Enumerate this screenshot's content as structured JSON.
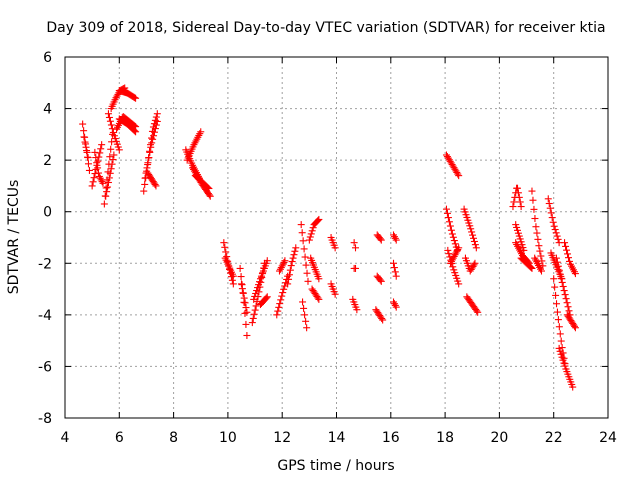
{
  "chart_data": {
    "type": "scatter",
    "title": "Day 309 of 2018, Sidereal Day-to-day VTEC variation (SDTVAR) for receiver ktia",
    "xlabel": "GPS time / hours",
    "ylabel": "SDTVAR / TECUs",
    "xlim": [
      4,
      24
    ],
    "ylim": [
      -8,
      6
    ],
    "xticks": [
      4,
      6,
      8,
      10,
      12,
      14,
      16,
      18,
      20,
      22,
      24
    ],
    "yticks": [
      -8,
      -6,
      -4,
      -2,
      0,
      2,
      4,
      6
    ],
    "xtick_labels": [
      "4",
      "6",
      "8",
      "10",
      "12",
      "14",
      "16",
      "18",
      "20",
      "22",
      "24"
    ],
    "ytick_labels": [
      "-8",
      "-6",
      "-4",
      "-2",
      "0",
      "2",
      "4",
      "6"
    ],
    "grid": true,
    "marker": "+",
    "marker_color": "#ff0000",
    "series": [
      {
        "name": "SDTVAR",
        "tracks": [
          {
            "x0": 4.65,
            "x1": 4.9,
            "y": [
              3.4,
              2.5,
              1.6
            ]
          },
          {
            "x0": 4.7,
            "x1": 4.85,
            "y": [
              2.9,
              2.1
            ]
          },
          {
            "x0": 5.0,
            "x1": 5.35,
            "y": [
              1.0,
              1.8,
              2.6
            ]
          },
          {
            "x0": 5.1,
            "x1": 5.4,
            "y": [
              2.3,
              1.4,
              1.1
            ]
          },
          {
            "x0": 5.45,
            "x1": 5.75,
            "y": [
              0.3,
              1.7,
              3.0
            ]
          },
          {
            "x0": 5.5,
            "x1": 5.8,
            "y": [
              0.6,
              2.2
            ]
          },
          {
            "x0": 5.6,
            "x1": 6.0,
            "y": [
              3.8,
              3.0,
              2.4
            ]
          },
          {
            "x0": 5.7,
            "x1": 6.2,
            "y": [
              4.0,
              4.4,
              4.7,
              4.8
            ]
          },
          {
            "x0": 6.0,
            "x1": 6.6,
            "y": [
              4.7,
              4.6,
              4.4
            ]
          },
          {
            "x0": 5.9,
            "x1": 6.6,
            "y": [
              3.2,
              3.7,
              3.5,
              3.3
            ]
          },
          {
            "x0": 6.0,
            "x1": 6.6,
            "y": [
              3.6,
              3.4,
              3.1
            ]
          },
          {
            "x0": 6.9,
            "x1": 7.4,
            "y": [
              0.8,
              2.0,
              3.2,
              3.8
            ]
          },
          {
            "x0": 6.95,
            "x1": 7.4,
            "y": [
              1.3,
              2.6,
              3.5
            ]
          },
          {
            "x0": 7.05,
            "x1": 7.35,
            "y": [
              1.5,
              1.0
            ]
          },
          {
            "x0": 8.45,
            "x1": 8.95,
            "y": [
              2.4,
              1.8,
              1.3
            ]
          },
          {
            "x0": 8.5,
            "x1": 9.0,
            "y": [
              2.0,
              2.6,
              3.1
            ]
          },
          {
            "x0": 8.7,
            "x1": 9.35,
            "y": [
              1.7,
              1.1,
              0.6
            ]
          },
          {
            "x0": 8.8,
            "x1": 9.3,
            "y": [
              1.4,
              0.9
            ]
          },
          {
            "x0": 9.85,
            "x1": 10.2,
            "y": [
              -1.2,
              -2.1,
              -2.8
            ]
          },
          {
            "x0": 9.9,
            "x1": 10.2,
            "y": [
              -1.8,
              -2.5
            ]
          },
          {
            "x0": 10.45,
            "x1": 10.7,
            "y": [
              -2.2,
              -3.3,
              -4.8
            ]
          },
          {
            "x0": 10.5,
            "x1": 10.7,
            "y": [
              -2.8,
              -3.9
            ]
          },
          {
            "x0": 10.9,
            "x1": 11.35,
            "y": [
              -4.3,
              -3.6,
              -2.8,
              -2.0
            ]
          },
          {
            "x0": 10.95,
            "x1": 11.45,
            "y": [
              -3.4,
              -2.6,
              -1.9
            ]
          },
          {
            "x0": 11.2,
            "x1": 11.45,
            "y": [
              -3.6,
              -3.3
            ]
          },
          {
            "x0": 11.8,
            "x1": 12.2,
            "y": [
              -4.0,
              -3.2,
              -2.5
            ]
          },
          {
            "x0": 11.9,
            "x1": 12.1,
            "y": [
              -2.3,
              -1.9
            ]
          },
          {
            "x0": 12.2,
            "x1": 12.5,
            "y": [
              -2.8,
              -2.0,
              -1.4
            ]
          },
          {
            "x0": 12.7,
            "x1": 12.95,
            "y": [
              -0.5,
              -1.6,
              -2.7
            ]
          },
          {
            "x0": 12.75,
            "x1": 12.9,
            "y": [
              -3.5,
              -4.5
            ]
          },
          {
            "x0": 13.0,
            "x1": 13.35,
            "y": [
              -1.1,
              -0.5,
              -0.3
            ]
          },
          {
            "x0": 13.05,
            "x1": 13.35,
            "y": [
              -1.8,
              -2.6
            ]
          },
          {
            "x0": 13.1,
            "x1": 13.35,
            "y": [
              -3.0,
              -3.4
            ]
          },
          {
            "x0": 13.8,
            "x1": 13.95,
            "y": [
              -1.0,
              -1.4
            ]
          },
          {
            "x0": 13.8,
            "x1": 13.95,
            "y": [
              -2.8,
              -3.2
            ]
          },
          {
            "x0": 14.65,
            "x1": 14.7,
            "y": [
              -1.2,
              -1.4
            ]
          },
          {
            "x0": 14.65,
            "x1": 14.7,
            "y": [
              -2.2
            ]
          },
          {
            "x0": 14.6,
            "x1": 14.75,
            "y": [
              -3.4,
              -3.8
            ]
          },
          {
            "x0": 15.5,
            "x1": 15.65,
            "y": [
              -0.9,
              -1.1
            ]
          },
          {
            "x0": 15.5,
            "x1": 15.65,
            "y": [
              -2.5,
              -2.7
            ]
          },
          {
            "x0": 15.45,
            "x1": 15.7,
            "y": [
              -3.8,
              -4.2
            ]
          },
          {
            "x0": 16.1,
            "x1": 16.2,
            "y": [
              -0.9,
              -1.1
            ]
          },
          {
            "x0": 16.1,
            "x1": 16.2,
            "y": [
              -2.0,
              -2.5
            ]
          },
          {
            "x0": 16.1,
            "x1": 16.2,
            "y": [
              -3.5,
              -3.7
            ]
          },
          {
            "x0": 18.05,
            "x1": 18.5,
            "y": [
              2.2,
              1.8,
              1.4
            ]
          },
          {
            "x0": 18.05,
            "x1": 18.45,
            "y": [
              0.1,
              -0.8,
              -1.5
            ]
          },
          {
            "x0": 18.1,
            "x1": 18.5,
            "y": [
              -1.5,
              -2.2,
              -2.8
            ]
          },
          {
            "x0": 18.2,
            "x1": 18.5,
            "y": [
              -2.0,
              -1.4
            ]
          },
          {
            "x0": 18.7,
            "x1": 19.15,
            "y": [
              0.1,
              -0.6,
              -1.4
            ]
          },
          {
            "x0": 18.75,
            "x1": 19.1,
            "y": [
              -1.8,
              -2.3,
              -2.0
            ]
          },
          {
            "x0": 18.8,
            "x1": 19.2,
            "y": [
              -3.3,
              -3.6,
              -3.9
            ]
          },
          {
            "x0": 20.5,
            "x1": 20.8,
            "y": [
              0.2,
              1.0,
              0.2
            ]
          },
          {
            "x0": 20.6,
            "x1": 20.9,
            "y": [
              -0.5,
              -1.5
            ]
          },
          {
            "x0": 20.6,
            "x1": 21.1,
            "y": [
              -1.2,
              -1.7,
              -2.0
            ]
          },
          {
            "x0": 20.8,
            "x1": 21.2,
            "y": [
              -1.8,
              -2.2
            ]
          },
          {
            "x0": 21.2,
            "x1": 21.6,
            "y": [
              0.8,
              -0.5,
              -1.4,
              -2.1
            ]
          },
          {
            "x0": 21.3,
            "x1": 21.55,
            "y": [
              -1.8,
              -2.3
            ]
          },
          {
            "x0": 21.8,
            "x1": 22.2,
            "y": [
              0.5,
              -0.5,
              -1.2
            ]
          },
          {
            "x0": 21.9,
            "x1": 22.3,
            "y": [
              -1.6,
              -2.6
            ]
          },
          {
            "x0": 22.0,
            "x1": 22.45,
            "y": [
              -2.6,
              -4.0,
              -5.2,
              -6.1
            ]
          },
          {
            "x0": 22.2,
            "x1": 22.7,
            "y": [
              -5.3,
              -6.1,
              -6.8
            ]
          },
          {
            "x0": 22.1,
            "x1": 22.6,
            "y": [
              -1.8,
              -2.9,
              -4.0
            ]
          },
          {
            "x0": 22.4,
            "x1": 22.8,
            "y": [
              -1.2,
              -2.0,
              -2.4
            ]
          },
          {
            "x0": 22.5,
            "x1": 22.8,
            "y": [
              -4.0,
              -4.5
            ]
          }
        ]
      }
    ]
  }
}
